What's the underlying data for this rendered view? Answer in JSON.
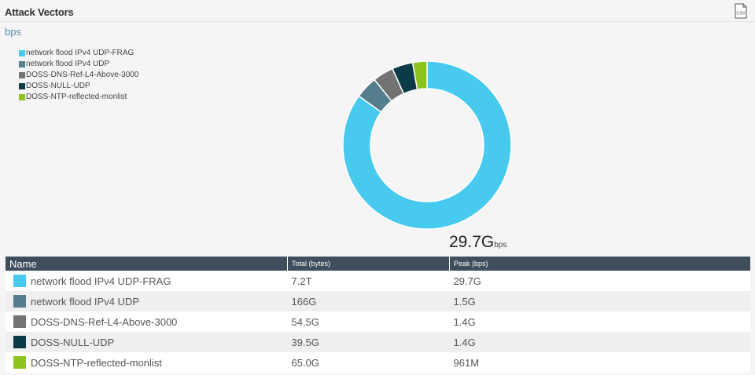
{
  "header": {
    "title": "Attack Vectors",
    "csv_label": "CSV"
  },
  "unit_label": "bps",
  "legend": [
    {
      "label": "network flood IPv4 UDP-FRAG",
      "color": "#48c9ee"
    },
    {
      "label": "network flood IPv4 UDP",
      "color": "#557f8e"
    },
    {
      "label": "DOSS-DNS-Ref-L4-Above-3000",
      "color": "#737373"
    },
    {
      "label": "DOSS-NULL-UDP",
      "color": "#0d3a47"
    },
    {
      "label": "DOSS-NTP-reflected-monlist",
      "color": "#8ec31f"
    }
  ],
  "center": {
    "value": "29.7G",
    "unit": "bps"
  },
  "table": {
    "columns": [
      "Name",
      "Total (bytes)",
      "Peak (bps)"
    ],
    "rows": [
      {
        "name": "network flood IPv4 UDP-FRAG",
        "total": "7.2T",
        "peak": "29.7G"
      },
      {
        "name": "network flood IPv4 UDP",
        "total": "166G",
        "peak": "1.5G"
      },
      {
        "name": "DOSS-DNS-Ref-L4-Above-3000",
        "total": "54.5G",
        "peak": "1.4G"
      },
      {
        "name": "DOSS-NULL-UDP",
        "total": "39.5G",
        "peak": "1.4G"
      },
      {
        "name": "DOSS-NTP-reflected-monlist",
        "total": "65.0G",
        "peak": "961M"
      }
    ]
  },
  "chart_data": {
    "type": "pie",
    "unit": "bps",
    "legend_position": "top-left",
    "categories": [
      "network flood IPv4 UDP-FRAG",
      "network flood IPv4 UDP",
      "DOSS-DNS-Ref-L4-Above-3000",
      "DOSS-NULL-UDP",
      "DOSS-NTP-reflected-monlist"
    ],
    "values": [
      29.7,
      1.5,
      1.4,
      1.4,
      0.961
    ],
    "colors": [
      "#48c9ee",
      "#557f8e",
      "#737373",
      "#0d3a47",
      "#8ec31f"
    ],
    "center_label": "29.7Gbps"
  }
}
